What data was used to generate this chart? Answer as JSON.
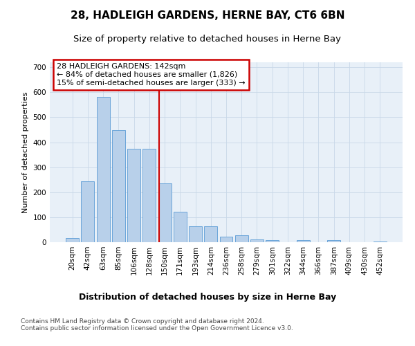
{
  "title": "28, HADLEIGH GARDENS, HERNE BAY, CT6 6BN",
  "subtitle": "Size of property relative to detached houses in Herne Bay",
  "xlabel": "Distribution of detached houses by size in Herne Bay",
  "ylabel": "Number of detached properties",
  "bin_labels": [
    "20sqm",
    "42sqm",
    "63sqm",
    "85sqm",
    "106sqm",
    "128sqm",
    "150sqm",
    "171sqm",
    "193sqm",
    "214sqm",
    "236sqm",
    "258sqm",
    "279sqm",
    "301sqm",
    "322sqm",
    "344sqm",
    "366sqm",
    "387sqm",
    "409sqm",
    "430sqm",
    "452sqm"
  ],
  "bar_heights": [
    17,
    245,
    582,
    449,
    375,
    375,
    235,
    122,
    65,
    65,
    22,
    28,
    12,
    9,
    0,
    7,
    0,
    7,
    0,
    0,
    3
  ],
  "bar_color": "#b8d0ea",
  "bar_edge_color": "#5b9bd5",
  "grid_color": "#c8d8e8",
  "background_color": "#e8f0f8",
  "vline_color": "#cc0000",
  "vline_pos": 5.636,
  "annotation_line1": "28 HADLEIGH GARDENS: 142sqm",
  "annotation_line2": "← 84% of detached houses are smaller (1,826)",
  "annotation_line3": "15% of semi-detached houses are larger (333) →",
  "annotation_box_color": "#cc0000",
  "footer_line1": "Contains HM Land Registry data © Crown copyright and database right 2024.",
  "footer_line2": "Contains public sector information licensed under the Open Government Licence v3.0.",
  "ylim": [
    0,
    720
  ],
  "yticks": [
    0,
    100,
    200,
    300,
    400,
    500,
    600,
    700
  ],
  "title_fontsize": 11,
  "subtitle_fontsize": 9.5,
  "xlabel_fontsize": 9,
  "ylabel_fontsize": 8,
  "tick_fontsize": 7.5,
  "annotation_fontsize": 8,
  "footer_fontsize": 6.5
}
